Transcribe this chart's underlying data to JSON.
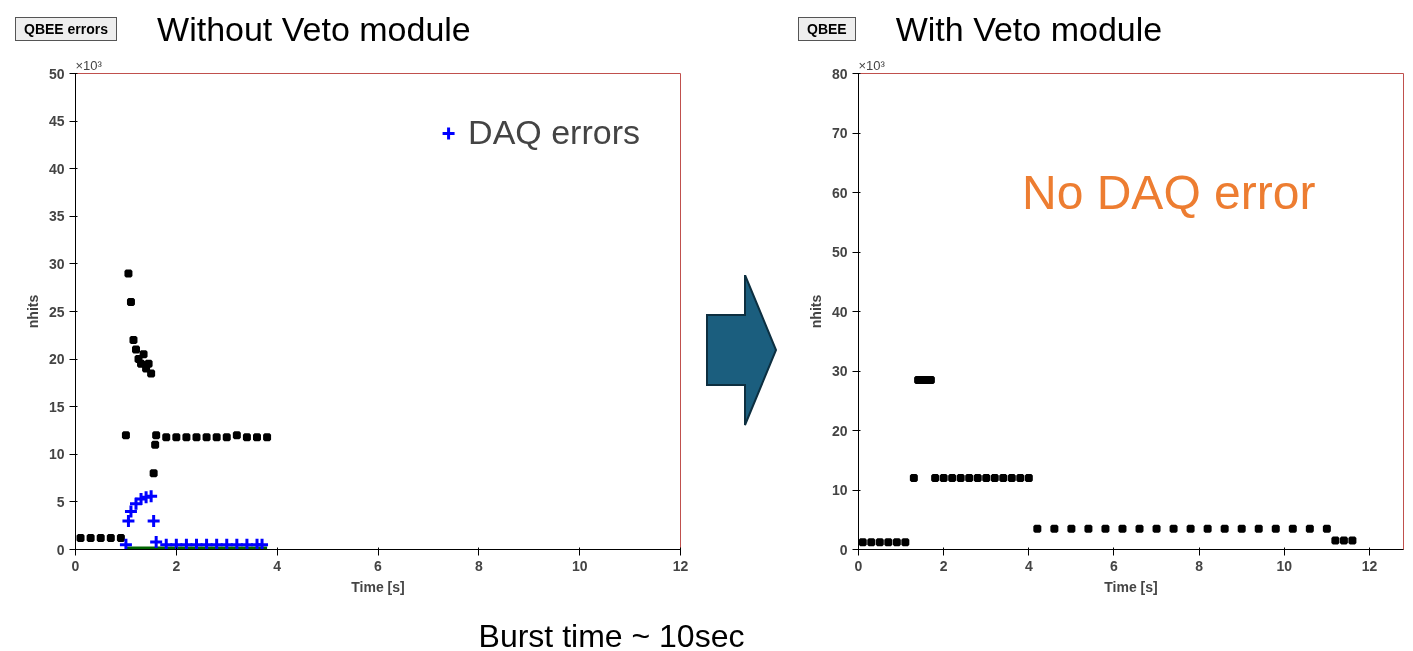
{
  "chart_data": [
    {
      "type": "scatter",
      "title": "Without Veto module",
      "subtitle": "QBEE errors",
      "xlabel": "Time [s]",
      "ylabel": "nhits",
      "xlim": [
        0,
        12
      ],
      "ylim": [
        0,
        50
      ],
      "xticks": [
        0,
        2,
        4,
        6,
        8,
        10,
        12
      ],
      "yticks": [
        0,
        5,
        10,
        15,
        20,
        25,
        30,
        35,
        40,
        45,
        50
      ],
      "grid": false,
      "legend": "top right",
      "marker": "square",
      "annotations": [
        "×10³"
      ],
      "series": [
        {
          "type": "line",
          "marker": "none",
          "color": "#006400",
          "x": [
            1.0,
            3.8
          ],
          "values": [
            0,
            0
          ]
        },
        {
          "color": "#000000",
          "x": [
            0.1,
            0.3,
            0.5,
            0.7,
            0.9,
            1.0,
            1.05,
            1.1,
            1.15,
            1.2,
            1.25,
            1.3,
            1.35,
            1.4,
            1.45,
            1.5,
            1.55,
            1.58,
            1.6,
            1.8,
            2.0,
            2.2,
            2.4,
            2.6,
            2.8,
            3.0,
            3.2,
            3.4,
            3.6,
            3.8
          ],
          "values": [
            1.2,
            1.2,
            1.2,
            1.2,
            1.2,
            12,
            29,
            26,
            22,
            21,
            20,
            19.5,
            20.5,
            19,
            19.5,
            18.5,
            8,
            11,
            12,
            11.8,
            11.8,
            11.8,
            11.8,
            11.8,
            11.8,
            11.8,
            12,
            11.8,
            11.8,
            11.8
          ]
        },
        {
          "name": "DAQ errors",
          "color": "#0000ff",
          "marker": "cross",
          "x": [
            1.0,
            1.05,
            1.1,
            1.2,
            1.3,
            1.4,
            1.5,
            1.55,
            1.6,
            1.8,
            2.0,
            2.2,
            2.4,
            2.6,
            2.8,
            3.0,
            3.2,
            3.4,
            3.6,
            3.7
          ],
          "values": [
            0.5,
            3,
            4,
            4.8,
            5.3,
            5.5,
            5.6,
            3,
            0.8,
            0.5,
            0.5,
            0.5,
            0.5,
            0.5,
            0.5,
            0.5,
            0.5,
            0.5,
            0.5,
            0.5
          ]
        }
      ]
    },
    {
      "type": "scatter",
      "title": "With Veto module",
      "subtitle": "QBEE",
      "xlabel": "Time [s]",
      "ylabel": "nhits",
      "xlim": [
        0,
        12.8
      ],
      "ylim": [
        0,
        80
      ],
      "xticks": [
        0,
        2,
        4,
        6,
        8,
        10,
        12
      ],
      "yticks": [
        0,
        10,
        20,
        30,
        40,
        50,
        60,
        70,
        80
      ],
      "grid": false,
      "marker": "square",
      "annotations": [
        "×10³",
        "No DAQ error",
        "Burst time ~ 10sec"
      ],
      "series": [
        {
          "color": "#000000",
          "x": [
            0.1,
            0.3,
            0.5,
            0.7,
            0.9,
            1.1,
            1.3,
            1.4,
            1.5,
            1.6,
            1.7,
            1.8,
            2.0,
            2.2,
            2.4,
            2.6,
            2.8,
            3.0,
            3.2,
            3.4,
            3.6,
            3.8,
            4.0,
            4.2,
            4.6,
            5.0,
            5.4,
            5.8,
            6.2,
            6.6,
            7.0,
            7.4,
            7.8,
            8.2,
            8.6,
            9.0,
            9.4,
            9.8,
            10.2,
            10.6,
            11.0,
            11.2,
            11.4,
            11.6
          ],
          "values": [
            1.2,
            1.2,
            1.2,
            1.2,
            1.2,
            1.2,
            12,
            28.5,
            28.5,
            28.5,
            28.5,
            12,
            12,
            12,
            12,
            12,
            12,
            12,
            12,
            12,
            12,
            12,
            12,
            3.5,
            3.5,
            3.5,
            3.5,
            3.5,
            3.5,
            3.5,
            3.5,
            3.5,
            3.5,
            3.5,
            3.5,
            3.5,
            3.5,
            3.5,
            3.5,
            3.5,
            3.5,
            1.5,
            1.5,
            1.5
          ]
        }
      ]
    }
  ]
}
